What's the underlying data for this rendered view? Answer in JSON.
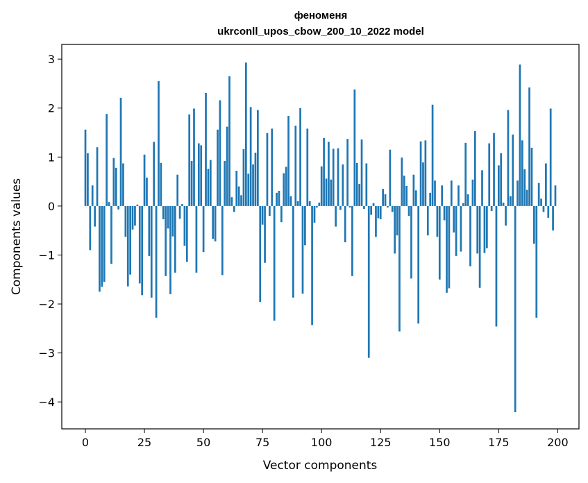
{
  "chart_data": {
    "type": "bar",
    "title_line1": "феноменя",
    "title_line2": "ukrconll_upos_cbow_200_10_2022 model",
    "xlabel": "Vector components",
    "ylabel": "Components values",
    "xlim": [
      -10,
      209
    ],
    "ylim": [
      -4.55,
      3.3
    ],
    "xticks": [
      0,
      25,
      50,
      75,
      100,
      125,
      150,
      175,
      200
    ],
    "xtick_labels": [
      "0",
      "25",
      "50",
      "75",
      "100",
      "125",
      "150",
      "175",
      "200"
    ],
    "yticks": [
      -4,
      -3,
      -2,
      -1,
      0,
      1,
      2,
      3
    ],
    "ytick_labels": [
      "−4",
      "−3",
      "−2",
      "−1",
      "0",
      "1",
      "2",
      "3"
    ],
    "bar_color": "#1f77b4",
    "values": [
      1.56,
      1.08,
      -0.9,
      0.42,
      -0.42,
      1.2,
      -1.75,
      -1.65,
      -1.55,
      1.88,
      0.08,
      -1.18,
      0.98,
      0.78,
      -0.07,
      2.21,
      0.87,
      -0.63,
      -1.64,
      -1.4,
      -0.48,
      -0.4,
      0.03,
      -1.58,
      -1.82,
      1.05,
      0.58,
      -1.02,
      -1.87,
      1.31,
      -2.28,
      2.55,
      0.88,
      -0.27,
      -1.43,
      -0.46,
      -1.8,
      -0.62,
      -1.36,
      0.64,
      -0.26,
      0.04,
      -0.81,
      -1.14,
      1.87,
      0.92,
      1.99,
      -1.36,
      1.28,
      1.24,
      -0.94,
      2.31,
      0.76,
      0.94,
      -0.67,
      -0.72,
      1.56,
      2.16,
      -1.41,
      0.92,
      1.62,
      2.65,
      0.18,
      -0.12,
      0.72,
      0.4,
      0.22,
      1.16,
      2.93,
      0.66,
      2.02,
      0.85,
      1.09,
      1.96,
      -1.96,
      -0.38,
      -1.16,
      1.49,
      -0.2,
      1.58,
      -2.34,
      0.27,
      0.31,
      -0.33,
      0.67,
      0.8,
      1.84,
      0.2,
      -1.87,
      1.64,
      0.1,
      2.0,
      -1.79,
      -0.8,
      1.58,
      0.1,
      -2.43,
      -0.34,
      -0.03,
      0.07,
      0.81,
      1.39,
      0.56,
      1.31,
      0.54,
      1.17,
      -0.42,
      1.18,
      -0.08,
      0.85,
      -0.74,
      1.37,
      -0.03,
      -1.43,
      2.38,
      0.88,
      0.45,
      1.36,
      -0.06,
      0.87,
      -3.1,
      -0.18,
      0.06,
      -0.63,
      -0.25,
      -0.27,
      0.35,
      0.24,
      -0.03,
      1.15,
      -0.12,
      -0.97,
      -0.6,
      -2.56,
      0.99,
      0.62,
      0.41,
      -0.2,
      -1.48,
      0.64,
      0.32,
      -2.4,
      1.32,
      0.89,
      1.34,
      -0.6,
      0.27,
      2.07,
      0.52,
      -0.63,
      -1.5,
      0.42,
      -0.29,
      -1.77,
      -1.68,
      0.52,
      -0.54,
      -1.02,
      0.42,
      -0.93,
      0.06,
      1.29,
      0.24,
      -1.23,
      0.54,
      1.53,
      -0.97,
      -1.67,
      0.73,
      -0.96,
      -0.86,
      1.28,
      -0.1,
      1.49,
      -2.46,
      0.83,
      1.08,
      0.07,
      -0.4,
      1.96,
      0.2,
      1.46,
      -4.21,
      0.52,
      2.89,
      1.34,
      0.75,
      0.33,
      2.42,
      1.19,
      -0.77,
      -2.28,
      0.47,
      0.15,
      -0.12,
      0.87,
      -0.24,
      1.99,
      -0.5,
      0.42
    ]
  }
}
